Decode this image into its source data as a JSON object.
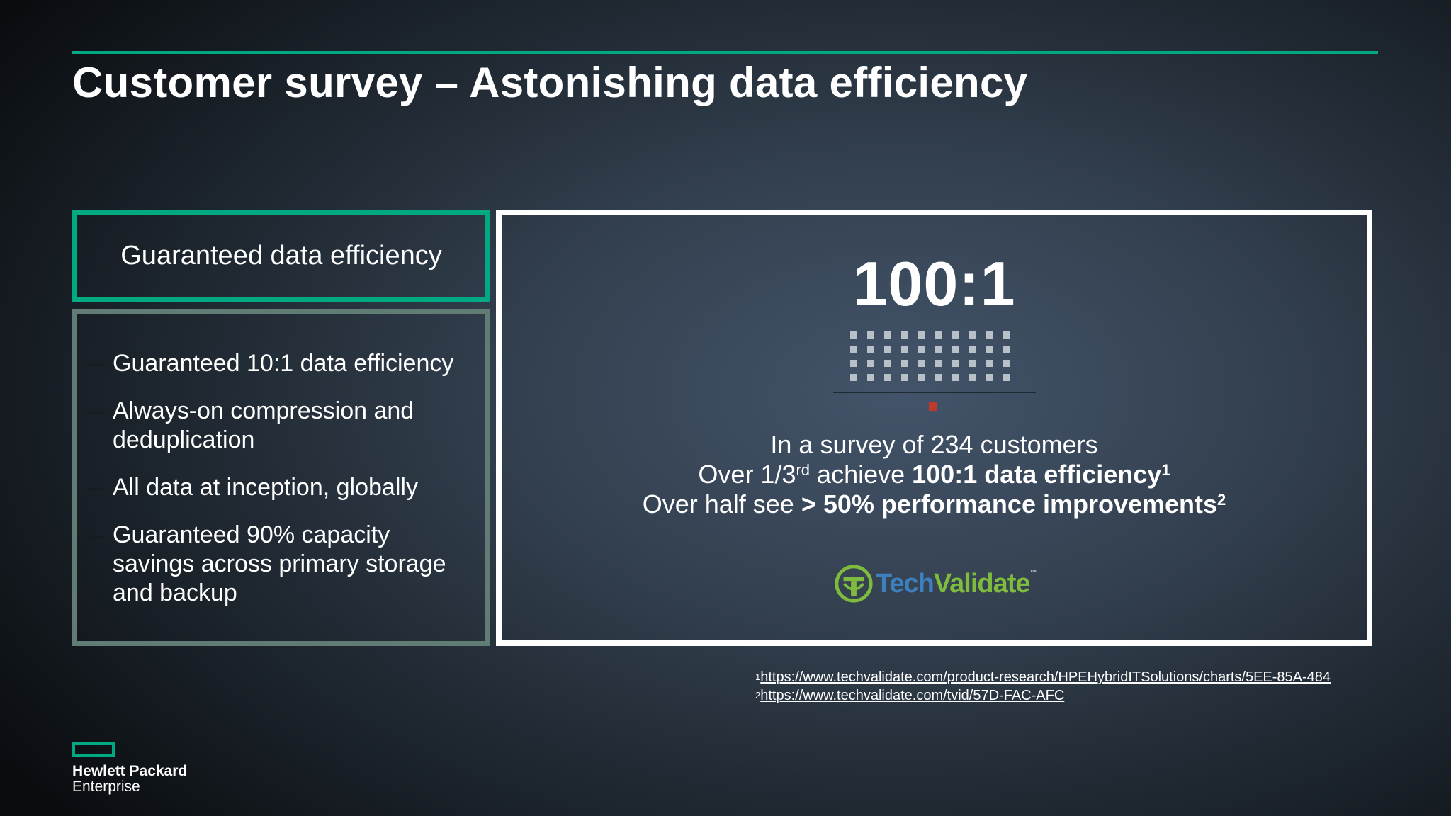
{
  "title": "Customer survey – Astonishing data efficiency",
  "left_panel": {
    "header": "Guaranteed data efficiency",
    "bullet_marker": "–",
    "items": [
      "Guaranteed 10:1 data efficiency",
      "Always-on compression and deduplication",
      "All data at inception, globally",
      "Guaranteed 90% capacity savings across primary storage and backup"
    ]
  },
  "main_panel": {
    "ratio": "100:1",
    "dot_grid": {
      "columns": 10,
      "rows": 4,
      "highlighted": 1
    },
    "line1": "In a survey of 234 customers",
    "line2": {
      "prefix": "Over 1/3",
      "prefix_sup": "rd",
      "middle": " achieve ",
      "bold": "100:1 data efficiency",
      "bold_sup": "1"
    },
    "line3": {
      "prefix": "Over half see ",
      "bold": "> 50% performance improvements",
      "bold_sup": "2"
    },
    "logo": {
      "part1": "Tech",
      "part2": "Validate",
      "mark": "™"
    }
  },
  "footnotes": [
    {
      "num": "1",
      "url": "https://www.techvalidate.com/product-research/HPEHybridITSolutions/charts/5EE-85A-484"
    },
    {
      "num": "2",
      "url": "https://www.techvalidate.com/tvid/57D-FAC-AFC"
    }
  ],
  "brand": {
    "line1": "Hewlett Packard",
    "line2": "Enterprise"
  },
  "colors": {
    "accent_green": "#01a982",
    "panel_border": "#607c74",
    "dot": "#b8c0c8",
    "highlight_dot": "#c0392b",
    "logo_blue": "#3d7fbf",
    "logo_green": "#7fbb3c"
  },
  "icons": {
    "techvalidate": "techvalidate-logo-icon",
    "hpe": "hpe-rectangle-logo"
  }
}
